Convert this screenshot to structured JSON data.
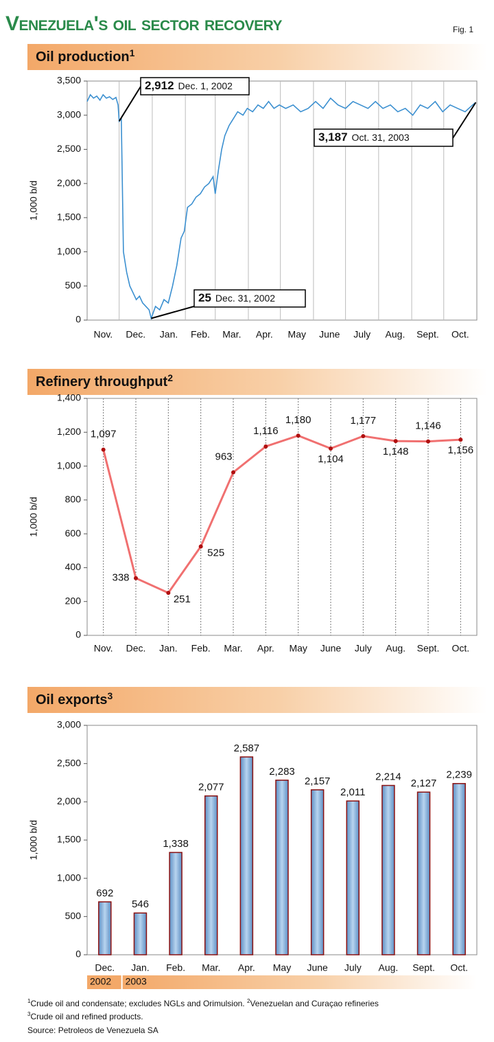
{
  "title": "Venezuela's oil sector recovery",
  "fig": "Fig. 1",
  "chart_data": [
    {
      "type": "line",
      "title": "Oil production",
      "title_note": "1",
      "ylabel": "1,000 b/d",
      "color": "#3a8fd0",
      "x": [
        "2002-11-01",
        "2002-11-04",
        "2002-11-07",
        "2002-11-10",
        "2002-11-13",
        "2002-11-16",
        "2002-11-19",
        "2002-11-22",
        "2002-11-25",
        "2002-11-28",
        "2002-11-30",
        "2002-12-01",
        "2002-12-03",
        "2002-12-05",
        "2002-12-08",
        "2002-12-11",
        "2002-12-14",
        "2002-12-17",
        "2002-12-20",
        "2002-12-23",
        "2002-12-26",
        "2002-12-29",
        "2002-12-31",
        "2003-01-04",
        "2003-01-08",
        "2003-01-12",
        "2003-01-16",
        "2003-01-20",
        "2003-01-24",
        "2003-01-28",
        "2003-01-31",
        "2003-02-03",
        "2003-02-07",
        "2003-02-11",
        "2003-02-15",
        "2003-02-19",
        "2003-02-23",
        "2003-02-27",
        "2003-03-01",
        "2003-03-04",
        "2003-03-07",
        "2003-03-10",
        "2003-03-14",
        "2003-03-18",
        "2003-03-22",
        "2003-03-27",
        "2003-03-31",
        "2003-04-05",
        "2003-04-10",
        "2003-04-15",
        "2003-04-20",
        "2003-04-25",
        "2003-04-30",
        "2003-05-06",
        "2003-05-13",
        "2003-05-20",
        "2003-05-27",
        "2003-06-03",
        "2003-06-10",
        "2003-06-17",
        "2003-06-24",
        "2003-07-01",
        "2003-07-08",
        "2003-07-15",
        "2003-07-22",
        "2003-07-29",
        "2003-08-05",
        "2003-08-12",
        "2003-08-19",
        "2003-08-26",
        "2003-09-02",
        "2003-09-09",
        "2003-09-16",
        "2003-09-23",
        "2003-09-30",
        "2003-10-07",
        "2003-10-14",
        "2003-10-21",
        "2003-10-28",
        "2003-10-31"
      ],
      "values": [
        3200,
        3300,
        3250,
        3280,
        3220,
        3300,
        3250,
        3270,
        3230,
        3260,
        3150,
        2912,
        2950,
        1000,
        700,
        500,
        400,
        300,
        350,
        250,
        200,
        150,
        25,
        200,
        150,
        300,
        250,
        500,
        800,
        1200,
        1300,
        1650,
        1700,
        1800,
        1850,
        1950,
        2000,
        2100,
        1850,
        2200,
        2500,
        2700,
        2850,
        2950,
        3050,
        3000,
        3100,
        3050,
        3150,
        3100,
        3200,
        3100,
        3150,
        3100,
        3150,
        3050,
        3100,
        3200,
        3100,
        3250,
        3150,
        3100,
        3200,
        3150,
        3100,
        3200,
        3100,
        3150,
        3050,
        3100,
        3000,
        3150,
        3100,
        3200,
        3050,
        3150,
        3100,
        3050,
        3150,
        3187
      ],
      "xlim": [
        "2002-11-01",
        "2003-11-01"
      ],
      "xticks": [
        {
          "value": "2002-11-01",
          "label": "Nov."
        },
        {
          "value": "2002-12-01",
          "label": "Dec."
        },
        {
          "value": "2003-01-01",
          "label": "Jan."
        },
        {
          "value": "2003-02-01",
          "label": "Feb."
        },
        {
          "value": "2003-03-01",
          "label": "Mar."
        },
        {
          "value": "2003-04-01",
          "label": "Apr."
        },
        {
          "value": "2003-05-01",
          "label": "May"
        },
        {
          "value": "2003-06-01",
          "label": "June"
        },
        {
          "value": "2003-07-01",
          "label": "July"
        },
        {
          "value": "2003-08-01",
          "label": "Aug."
        },
        {
          "value": "2003-09-01",
          "label": "Sept."
        },
        {
          "value": "2003-10-01",
          "label": "Oct."
        }
      ],
      "ylim": [
        0,
        3500
      ],
      "yticks": [
        0,
        {
          "value": 500,
          "label": "500"
        },
        {
          "value": 1000,
          "label": "1,000"
        },
        {
          "value": 1500,
          "label": "1,500"
        },
        {
          "value": 2000,
          "label": "2,000"
        },
        {
          "value": 2500,
          "label": "2,500"
        },
        {
          "value": 3000,
          "label": "3,000"
        },
        {
          "value": 3500,
          "label": "3,500"
        }
      ],
      "annotations": [
        {
          "x": "2002-12-01",
          "y": 2912,
          "label": "2,912",
          "date": "Dec. 1, 2002"
        },
        {
          "x": "2002-12-31",
          "y": 25,
          "label": "25",
          "date": "Dec. 31, 2002"
        },
        {
          "x": "2003-10-31",
          "y": 3187,
          "label": "3,187",
          "date": "Oct. 31, 2003"
        }
      ]
    },
    {
      "type": "line_points",
      "title": "Refinery throughput",
      "title_note": "2",
      "ylabel": "1,000 b/d",
      "color": "#f07070",
      "marker_color": "#b01010",
      "categories": [
        "Nov.",
        "Dec.",
        "Jan.",
        "Feb.",
        "Mar.",
        "Apr.",
        "May",
        "June",
        "July",
        "Aug.",
        "Sept.",
        "Oct."
      ],
      "values": [
        1097,
        338,
        251,
        525,
        963,
        1116,
        1180,
        1104,
        1177,
        1148,
        1146,
        1156
      ],
      "value_labels": [
        "1,097",
        "338",
        "251",
        "525",
        "963",
        "1,116",
        "1,180",
        "1,104",
        "1,177",
        "1,148",
        "1,146",
        "1,156"
      ],
      "ylim": [
        0,
        1400
      ],
      "yticks": [
        0,
        200,
        400,
        600,
        800,
        {
          "value": 1000,
          "label": "1,000"
        },
        {
          "value": 1200,
          "label": "1,200"
        },
        {
          "value": 1400,
          "label": "1,400"
        }
      ]
    },
    {
      "type": "bar",
      "title": "Oil exports",
      "title_note": "3",
      "ylabel": "1,000 b/d",
      "color": "#8fb8e0",
      "categories": [
        "Dec.",
        "Jan.",
        "Feb.",
        "Mar.",
        "Apr.",
        "May",
        "June",
        "July",
        "Aug.",
        "Sept.",
        "Oct."
      ],
      "values": [
        692,
        546,
        1338,
        2077,
        2587,
        2283,
        2157,
        2011,
        2214,
        2127,
        2239
      ],
      "value_labels": [
        "692",
        "546",
        "1,338",
        "2,077",
        "2,587",
        "2,283",
        "2,157",
        "2,011",
        "2,214",
        "2,127",
        "2,239"
      ],
      "ylim": [
        0,
        3000
      ],
      "yticks": [
        0,
        500,
        {
          "value": 1000,
          "label": "1,000"
        },
        {
          "value": 1500,
          "label": "1,500"
        },
        {
          "value": 2000,
          "label": "2,000"
        },
        {
          "value": 2500,
          "label": "2,500"
        },
        {
          "value": 3000,
          "label": "3,000"
        }
      ],
      "year_labels": [
        "2002",
        "2003"
      ]
    }
  ],
  "footnotes": [
    {
      "mark": "1",
      "text": "Crude oil and condensate; excludes NGLs and Orimulsion. "
    },
    {
      "mark": "2",
      "text": "Venezuelan and Curaçao refineries"
    },
    {
      "mark": "3",
      "text": "Crude oil and refined products."
    }
  ],
  "source": "Source: Petroleos de Venezuela SA"
}
